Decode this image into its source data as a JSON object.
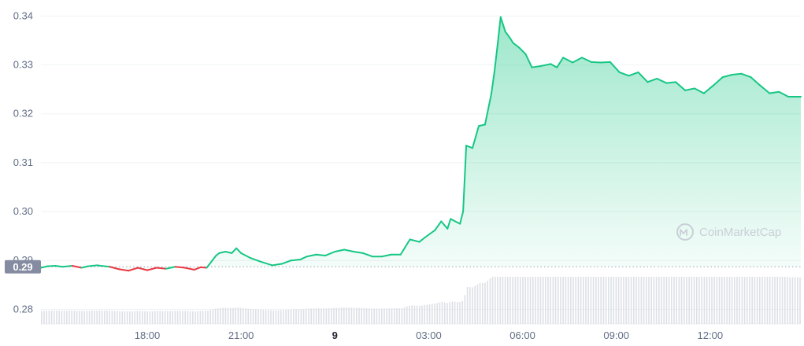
{
  "chart_data": {
    "type": "area",
    "watermark": "CoinMarketCap",
    "colors": {
      "up": "#16c784",
      "down": "#ea3943",
      "fill_top": "#16c784",
      "grid": "#eff2f5",
      "reference_line": "#9aa3b1",
      "badge": "#858ca2",
      "volume": "#d7dbe2"
    },
    "grid": true,
    "ylim": [
      0.277,
      0.342
    ],
    "y_ticks": [
      {
        "label": "0.34",
        "value": 0.34
      },
      {
        "label": "0.33",
        "value": 0.33
      },
      {
        "label": "0.32",
        "value": 0.32
      },
      {
        "label": "0.31",
        "value": 0.31
      },
      {
        "label": "0.30",
        "value": 0.3
      },
      {
        "label": "0.29",
        "value": 0.29
      },
      {
        "label": "0.28",
        "value": 0.28
      }
    ],
    "x_ticks": [
      {
        "label": "18:00",
        "hour": 17.9,
        "bold": false
      },
      {
        "label": "21:00",
        "hour": 20.9,
        "bold": false
      },
      {
        "label": "9",
        "hour": 23.9,
        "bold": true
      },
      {
        "label": "03:00",
        "hour": 26.9,
        "bold": false
      },
      {
        "label": "06:00",
        "hour": 29.9,
        "bold": false
      },
      {
        "label": "09:00",
        "hour": 32.9,
        "bold": false
      },
      {
        "label": "12:00",
        "hour": 35.9,
        "bold": false
      }
    ],
    "xlim_hours": [
      14.5,
      38.8
    ],
    "reference": {
      "label": "0.29",
      "value": 0.2887
    },
    "price_series": {
      "hours": [
        14.5,
        14.7,
        14.95,
        15.2,
        15.5,
        15.8,
        16.0,
        16.3,
        16.7,
        17.0,
        17.3,
        17.6,
        17.9,
        18.2,
        18.5,
        18.8,
        19.1,
        19.4,
        19.6,
        19.8,
        20.1,
        20.2,
        20.4,
        20.6,
        20.75,
        20.9,
        21.2,
        21.5,
        21.9,
        22.2,
        22.5,
        22.8,
        23.0,
        23.3,
        23.6,
        23.9,
        24.2,
        24.5,
        24.8,
        25.1,
        25.4,
        25.7,
        26.0,
        26.3,
        26.6,
        26.8,
        27.1,
        27.3,
        27.5,
        27.6,
        27.9,
        28.0,
        28.1,
        28.3,
        28.5,
        28.7,
        28.9,
        29.0,
        29.1,
        29.2,
        29.35,
        29.5,
        29.6,
        29.8,
        30.0,
        30.2,
        30.5,
        30.8,
        31.0,
        31.2,
        31.5,
        31.8,
        32.1,
        32.4,
        32.7,
        33.0,
        33.3,
        33.6,
        33.9,
        34.2,
        34.5,
        34.8,
        35.1,
        35.4,
        35.7,
        36.0,
        36.3,
        36.6,
        36.9,
        37.2,
        37.5,
        37.8,
        38.1,
        38.4,
        38.8
      ],
      "values": [
        0.2885,
        0.2888,
        0.2889,
        0.2887,
        0.2889,
        0.2885,
        0.2888,
        0.289,
        0.2887,
        0.2882,
        0.2879,
        0.2885,
        0.288,
        0.2885,
        0.2883,
        0.2887,
        0.2885,
        0.2881,
        0.2886,
        0.2885,
        0.291,
        0.2915,
        0.2918,
        0.2915,
        0.2925,
        0.2915,
        0.2905,
        0.2898,
        0.289,
        0.2893,
        0.29,
        0.2902,
        0.2908,
        0.2912,
        0.291,
        0.2918,
        0.2922,
        0.2918,
        0.2915,
        0.2908,
        0.2908,
        0.2912,
        0.2912,
        0.2943,
        0.2938,
        0.2948,
        0.2962,
        0.298,
        0.2965,
        0.2985,
        0.2975,
        0.3,
        0.3135,
        0.313,
        0.3175,
        0.3178,
        0.324,
        0.3285,
        0.334,
        0.3398,
        0.3368,
        0.3355,
        0.3345,
        0.3335,
        0.3322,
        0.3295,
        0.3298,
        0.3302,
        0.3295,
        0.3315,
        0.3305,
        0.3315,
        0.3306,
        0.3305,
        0.3306,
        0.3285,
        0.3278,
        0.3285,
        0.3265,
        0.3272,
        0.3263,
        0.3265,
        0.3248,
        0.3252,
        0.3242,
        0.3258,
        0.3275,
        0.328,
        0.3282,
        0.3275,
        0.3258,
        0.3242,
        0.3245,
        0.3235,
        0.3235
      ]
    }
  }
}
